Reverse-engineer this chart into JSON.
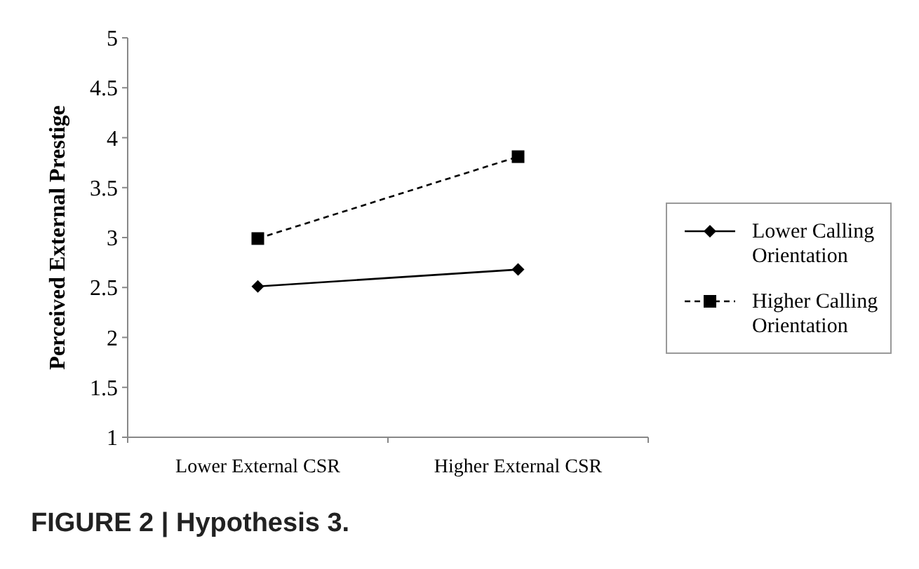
{
  "chart_data": {
    "type": "line",
    "title": "FIGURE 2 | Hypothesis 3.",
    "ylabel": "Perceived External Prestige",
    "categories": [
      "Lower External CSR",
      "Higher External CSR"
    ],
    "series": [
      {
        "name": "Lower Calling Orientation",
        "color": "#000000",
        "values": [
          2.51,
          2.68
        ],
        "marker": "diamond",
        "line_style": "solid"
      },
      {
        "name": "Higher Calling Orientation",
        "color": "#000000",
        "values": [
          2.99,
          3.81
        ],
        "marker": "square",
        "line_style": "dashed"
      }
    ],
    "ylim": [
      1,
      5
    ],
    "yticks": [
      1,
      1.5,
      2,
      2.5,
      3,
      3.5,
      4,
      4.5,
      5
    ],
    "grid": false,
    "legend": "right"
  }
}
